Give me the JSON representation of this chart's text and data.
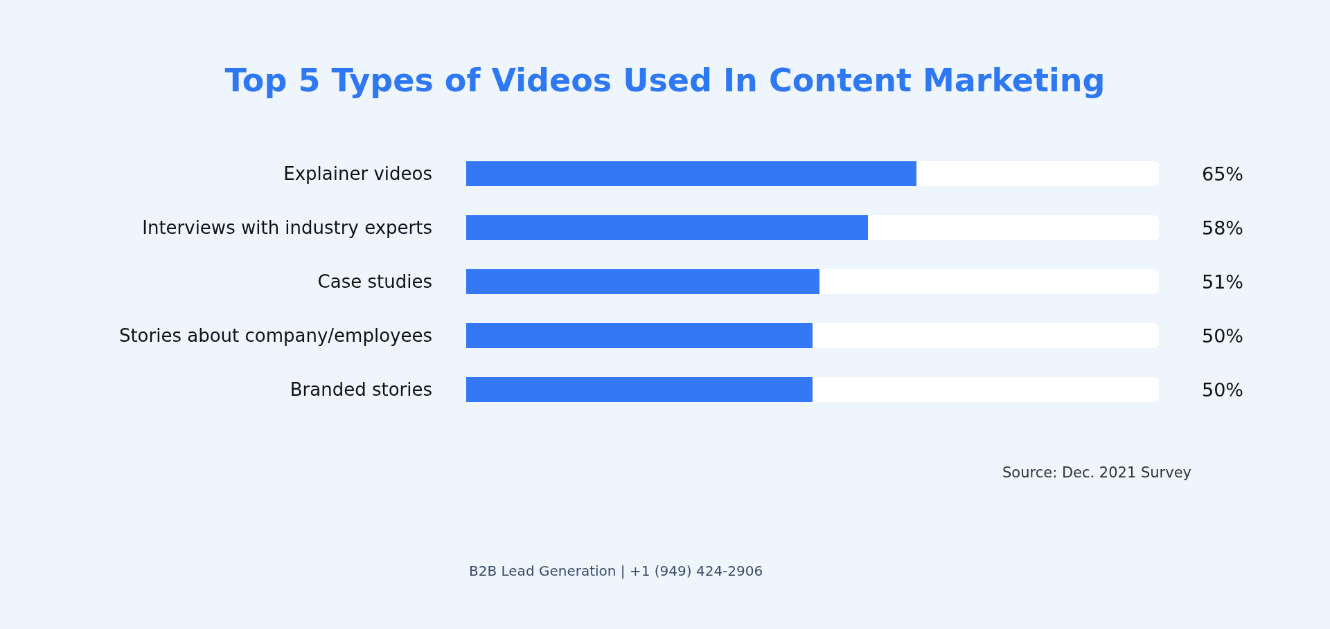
{
  "chart_data": {
    "type": "bar",
    "orientation": "horizontal",
    "stacked": true,
    "title": "Top 5 Types of Videos Used In Content Marketing",
    "categories": [
      "Explainer videos",
      "Interviews with industry experts",
      "Case studies",
      "Stories about company/employees",
      "Branded stories"
    ],
    "series": [
      {
        "color": "#3478f6",
        "values": [
          65,
          58,
          51,
          50,
          50
        ],
        "value_labels": [
          "65%",
          "58%",
          "51%",
          "50%",
          "50%"
        ]
      },
      {
        "color": "#ffffff",
        "values": [
          35,
          42,
          49,
          50,
          50
        ]
      }
    ],
    "xlim": [
      0,
      100
    ],
    "tick_labels": "y",
    "grid": false,
    "annotations": [
      "Source: Dec. 2021 Survey",
      "B2B Lead Generation | +1 (949) 424-2906"
    ]
  }
}
